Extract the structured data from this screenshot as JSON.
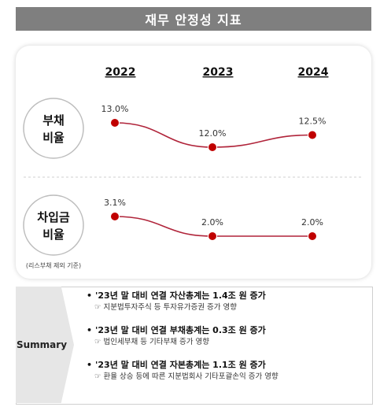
{
  "title": "재무 안정성 지표",
  "chart_data": {
    "type": "line",
    "categories": [
      "2022",
      "2023",
      "2024"
    ],
    "series": [
      {
        "name": "부채비율",
        "values": [
          13.0,
          12.0,
          12.5
        ],
        "labels": [
          "13.0%",
          "12.0%",
          "12.5%"
        ]
      },
      {
        "name": "차입금비율",
        "values": [
          3.1,
          2.0,
          2.0
        ],
        "labels": [
          "3.1%",
          "2.0%",
          "2.0%"
        ]
      }
    ],
    "row_labels": [
      [
        "부채",
        "비율"
      ],
      [
        "차입금",
        "비율"
      ]
    ],
    "note": "(리스부채 제외 기준)",
    "line_color": "#b0243a",
    "marker_color": "#c00000"
  },
  "summary": {
    "label": "Summary",
    "items": [
      {
        "bullet": "•",
        "main": "'23년 말 대비 연결 자산총계는 1.4조 원 증가",
        "sub": "☞ 지분법투자주식 등 투자유가증권 증가 영향"
      },
      {
        "bullet": "•",
        "main": "'23년 말 대비 연결 부채총계는 0.3조 원 증가",
        "sub": "☞ 법인세부채 등 기타부채 증가 영향"
      },
      {
        "bullet": "•",
        "main": "'23년 말 대비 연결 자본총계는 1.1조 원 증가",
        "sub": "☞ 환율 상승 등에 따른 지분법회사 기타포괄손익 증가 영향"
      }
    ]
  }
}
